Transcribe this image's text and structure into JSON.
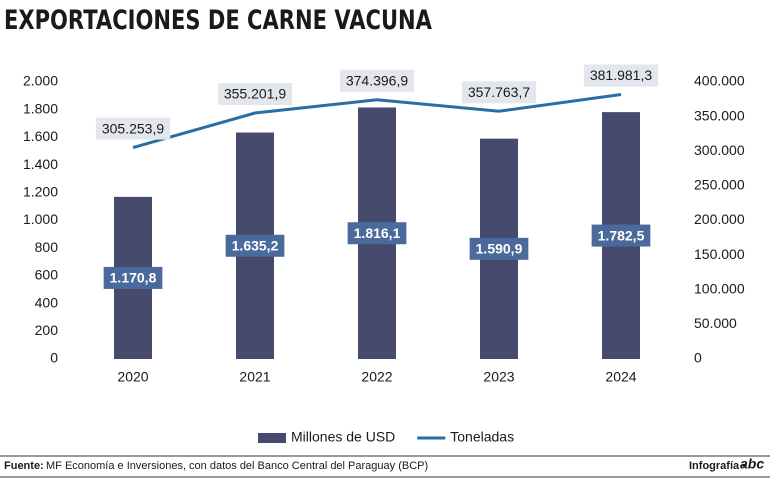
{
  "chart_data": {
    "type": "bar-line",
    "title": "EXPORTACIONES DE CARNE VACUNA",
    "categories": [
      "2020",
      "2021",
      "2022",
      "2023",
      "2024"
    ],
    "series": [
      {
        "name": "Millones de USD",
        "type": "bar",
        "color": "#464b6e",
        "values": [
          1170.8,
          1635.2,
          1816.1,
          1590.9,
          1782.5
        ],
        "value_labels": [
          "1.170,8",
          "1.635,2",
          "1.816,1",
          "1.590,9",
          "1.782,5"
        ]
      },
      {
        "name": "Toneladas",
        "type": "line",
        "axis": "y2",
        "color": "#2b6ea6",
        "values": [
          305253.9,
          355201.9,
          374396.9,
          357763.7,
          381981.3
        ],
        "value_labels": [
          "305.253,9",
          "355.201,9",
          "374.396,9",
          "357.763,7",
          "381.981,3"
        ]
      }
    ],
    "ylim": [
      0,
      2000
    ],
    "yticks": [
      0,
      200,
      400,
      600,
      800,
      {
        "value": 1000,
        "label": "1.000"
      },
      {
        "value": 1200,
        "label": "1.200"
      },
      {
        "value": 1400,
        "label": "1.400"
      },
      {
        "value": 1600,
        "label": "1.600"
      },
      {
        "value": 1800,
        "label": "1.800"
      },
      {
        "value": 2000,
        "label": "2.000"
      }
    ],
    "y2lim": [
      0,
      400000
    ],
    "y2ticks": [
      0,
      {
        "value": 50000,
        "label": "50.000"
      },
      {
        "value": 100000,
        "label": "100.000"
      },
      {
        "value": 150000,
        "label": "150.000"
      },
      {
        "value": 200000,
        "label": "200.000"
      },
      {
        "value": 250000,
        "label": "250.000"
      },
      {
        "value": 300000,
        "label": "300.000"
      },
      {
        "value": 350000,
        "label": "350.000"
      },
      {
        "value": 400000,
        "label": "400.000"
      }
    ],
    "grid": false,
    "legend": "bottom",
    "source_label": "Fuente:",
    "source": "MF Economía e Inversiones, con datos del Banco Central del Paraguay (BCP)",
    "credit": "Infografía •",
    "logo": "abc"
  }
}
